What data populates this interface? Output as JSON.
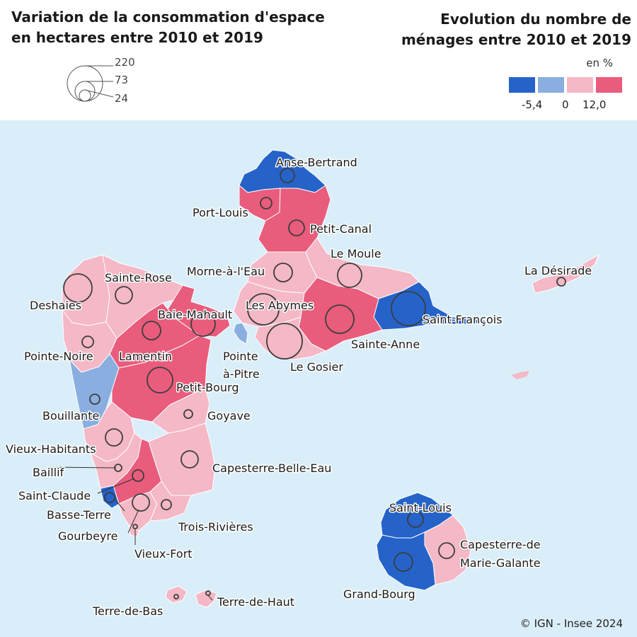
{
  "titles": {
    "left_line1": "Variation de la consommation d'espace",
    "left_line2": "en hectares entre 2010 et 2019",
    "right_line1": "Evolution du nombre de",
    "right_line2": "ménages entre 2010 et 2019"
  },
  "size_legend": {
    "labels": [
      "220",
      "73",
      "24"
    ]
  },
  "color_legend": {
    "unit": "en %",
    "colors": [
      "#2563c9",
      "#8aaee0",
      "#f4b8c6",
      "#e95c7c"
    ],
    "breaks": [
      "-5,4",
      "0",
      "12,0"
    ]
  },
  "colors": {
    "sea": "#daeefa",
    "strong_decrease": "#2563c9",
    "decrease": "#8aaee0",
    "increase": "#f4b8c6",
    "strong_increase": "#e95c7c"
  },
  "communes": [
    {
      "name": "Anse-Bertrand",
      "class": "strong_decrease"
    },
    {
      "name": "Port-Louis",
      "class": "strong_increase"
    },
    {
      "name": "Petit-Canal",
      "class": "strong_increase"
    },
    {
      "name": "Le Moule",
      "class": "increase"
    },
    {
      "name": "Morne-à-l'Eau",
      "class": "increase"
    },
    {
      "name": "Les Abymes",
      "class": "increase"
    },
    {
      "name": "Saint-François",
      "class": "strong_decrease"
    },
    {
      "name": "Sainte-Anne",
      "class": "strong_increase"
    },
    {
      "name": "Le Gosier",
      "class": "increase"
    },
    {
      "name": "Pointe-à-Pitre",
      "class": "decrease"
    },
    {
      "name": "La Désirade",
      "class": "increase"
    },
    {
      "name": "Sainte-Rose",
      "class": "increase"
    },
    {
      "name": "Deshaies",
      "class": "increase"
    },
    {
      "name": "Baie-Mahault",
      "class": "strong_increase"
    },
    {
      "name": "Lamentin",
      "class": "strong_increase"
    },
    {
      "name": "Pointe-Noire",
      "class": "increase"
    },
    {
      "name": "Petit-Bourg",
      "class": "strong_increase"
    },
    {
      "name": "Bouillante",
      "class": "decrease"
    },
    {
      "name": "Goyave",
      "class": "increase"
    },
    {
      "name": "Vieux-Habitants",
      "class": "increase"
    },
    {
      "name": "Capesterre-Belle-Eau",
      "class": "increase"
    },
    {
      "name": "Baillif",
      "class": "increase"
    },
    {
      "name": "Saint-Claude",
      "class": "strong_increase"
    },
    {
      "name": "Basse-Terre",
      "class": "strong_decrease"
    },
    {
      "name": "Gourbeyre",
      "class": "increase"
    },
    {
      "name": "Trois-Rivières",
      "class": "increase"
    },
    {
      "name": "Vieux-Fort",
      "class": "increase"
    },
    {
      "name": "Saint-Louis",
      "class": "strong_decrease"
    },
    {
      "name": "Capesterre-de Marie-Galante",
      "class": "increase"
    },
    {
      "name": "Grand-Bourg",
      "class": "strong_decrease"
    },
    {
      "name": "Terre-de-Bas",
      "class": "increase"
    },
    {
      "name": "Terre-de-Haut",
      "class": "increase"
    }
  ],
  "map_labels": {
    "anse_bertrand": "Anse-Bertrand",
    "port_louis": "Port-Louis",
    "petit_canal": "Petit-Canal",
    "le_moule": "Le Moule",
    "morne_a_l_eau": "Morne-à-l'Eau",
    "la_desirade": "La Désirade",
    "sainte_rose": "Sainte-Rose",
    "deshaies": "Deshaies",
    "les_abymes": "Les Abymes",
    "baie_mahault": "Baie-Mahault",
    "saint_francois": "Saint-François",
    "pointe_noire": "Pointe-Noire",
    "lamentin": "Lamentin",
    "pointe_a_pitre_1": "Pointe",
    "pointe_a_pitre_2": "à-Pitre",
    "sainte_anne": "Sainte-Anne",
    "le_gosier": "Le Gosier",
    "petit_bourg": "Petit-Bourg",
    "bouillante": "Bouillante",
    "goyave": "Goyave",
    "vieux_habitants": "Vieux-Habitants",
    "capesterre_belle_eau": "Capesterre-Belle-Eau",
    "baillif": "Baillif",
    "saint_claude": "Saint-Claude",
    "basse_terre": "Basse-Terre",
    "gourbeyre": "Gourbeyre",
    "trois_rivieres": "Trois-Rivières",
    "vieux_fort": "Vieux-Fort",
    "saint_louis": "Saint-Louis",
    "capesterre_mg_1": "Capesterre-de",
    "capesterre_mg_2": "Marie-Galante",
    "grand_bourg": "Grand-Bourg",
    "terre_de_bas": "Terre-de-Bas",
    "terre_de_haut": "Terre-de-Haut"
  },
  "copyright": "© IGN - Insee 2024"
}
